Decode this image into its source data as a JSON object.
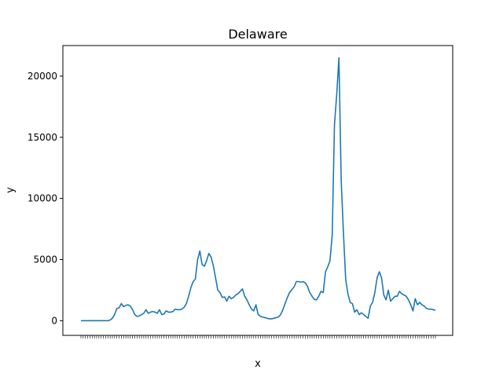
{
  "chart_data": {
    "type": "line",
    "title": "Delaware",
    "xlabel": "x",
    "ylabel": "y",
    "ylim": [
      -1200,
      22500
    ],
    "yticks": [
      0,
      5000,
      10000,
      15000,
      20000
    ],
    "grid": false,
    "legend": "none",
    "series_color": "#1f77b4",
    "x_count": 155,
    "y": [
      0,
      0,
      0,
      0,
      0,
      0,
      0,
      0,
      0,
      0,
      0,
      0,
      0,
      50,
      200,
      500,
      1000,
      1050,
      1400,
      1150,
      1250,
      1300,
      1200,
      900,
      500,
      350,
      400,
      500,
      600,
      900,
      600,
      700,
      750,
      700,
      600,
      900,
      500,
      550,
      800,
      700,
      700,
      750,
      950,
      900,
      900,
      950,
      1100,
      1400,
      2000,
      2700,
      3200,
      3400,
      5000,
      5700,
      4600,
      4450,
      4900,
      5500,
      5200,
      4500,
      3500,
      2500,
      2300,
      1900,
      1950,
      1600,
      2000,
      1800,
      1900,
      2100,
      2200,
      2400,
      2600,
      2000,
      1700,
      1300,
      950,
      800,
      1300,
      500,
      350,
      300,
      250,
      200,
      150,
      150,
      200,
      250,
      300,
      500,
      900,
      1400,
      1900,
      2300,
      2550,
      2750,
      3200,
      3200,
      3150,
      3200,
      3100,
      2800,
      2300,
      2000,
      1750,
      1700,
      2000,
      2400,
      2300,
      4000,
      4400,
      4900,
      7000,
      16000,
      18500,
      21500,
      11500,
      7200,
      3400,
      2200,
      1500,
      1400,
      700,
      900,
      500,
      650,
      500,
      350,
      200,
      1200,
      1500,
      2300,
      3500,
      4000,
      3500,
      2100,
      1700,
      2500,
      1600,
      1800,
      2000,
      2000,
      2400,
      2200,
      2100,
      2000,
      1700,
      1300,
      800,
      1800,
      1300,
      1500,
      1300,
      1200,
      1000,
      950,
      950,
      900,
      850
    ]
  }
}
